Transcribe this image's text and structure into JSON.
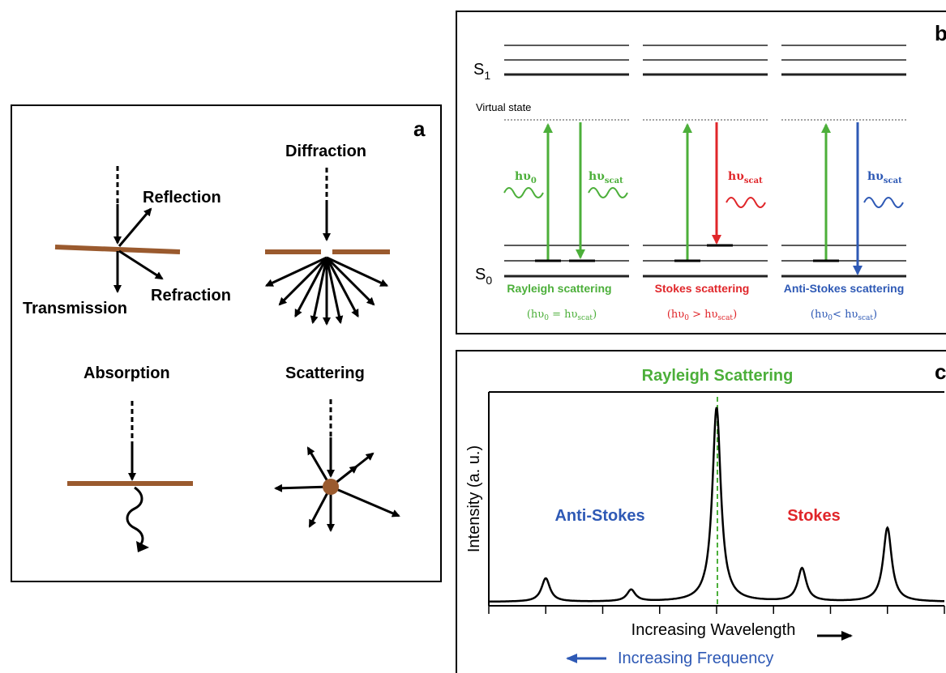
{
  "panel_a": {
    "letter": "a",
    "labels": {
      "reflection": "Reflection",
      "refraction": "Refraction",
      "transmission": "Transmission",
      "diffraction": "Diffraction",
      "absorption": "Absorption",
      "scattering": "Scattering"
    }
  },
  "panel_b": {
    "letter": "b",
    "s1": "S",
    "s1_sub": "1",
    "s0": "S",
    "s0_sub": "0",
    "virtual_state": "Virtual state",
    "h": "hυ",
    "sub0": "0",
    "subscat": "scat",
    "rayleigh": {
      "title": "Rayleigh scattering",
      "relation": "="
    },
    "stokes": {
      "title": "Stokes scattering",
      "relation": ">"
    },
    "anti_stokes": {
      "title": "Anti-Stokes scattering",
      "relation": "<"
    },
    "colors": {
      "green": "#4caf3a",
      "red": "#e0262a",
      "blue": "#2e59b5"
    }
  },
  "panel_c": {
    "letter": "c",
    "title": "Rayleigh Scattering",
    "ylabel": "Intensity (a. u.)",
    "anti_stokes": "Anti-Stokes",
    "stokes": "Stokes",
    "xlabel": "Increasing Wavelength",
    "freq_label": "Increasing Frequency"
  },
  "chart_data": {
    "type": "line",
    "xlabel": "Increasing Wavelength",
    "ylabel": "Intensity (a. u.)",
    "peaks": [
      {
        "position": 1.0,
        "height": 0.12,
        "label": "Anti-Stokes"
      },
      {
        "position": 2.5,
        "height": 0.06,
        "label": "Anti-Stokes"
      },
      {
        "position": 4.0,
        "height": 1.0,
        "label": "Rayleigh Scattering"
      },
      {
        "position": 5.5,
        "height": 0.17,
        "label": "Stokes"
      },
      {
        "position": 7.0,
        "height": 0.38,
        "label": "Stokes"
      }
    ],
    "baseline": 0.02,
    "xlim": [
      0,
      8
    ],
    "ylim": [
      0,
      1.1
    ],
    "ticks": 9
  }
}
